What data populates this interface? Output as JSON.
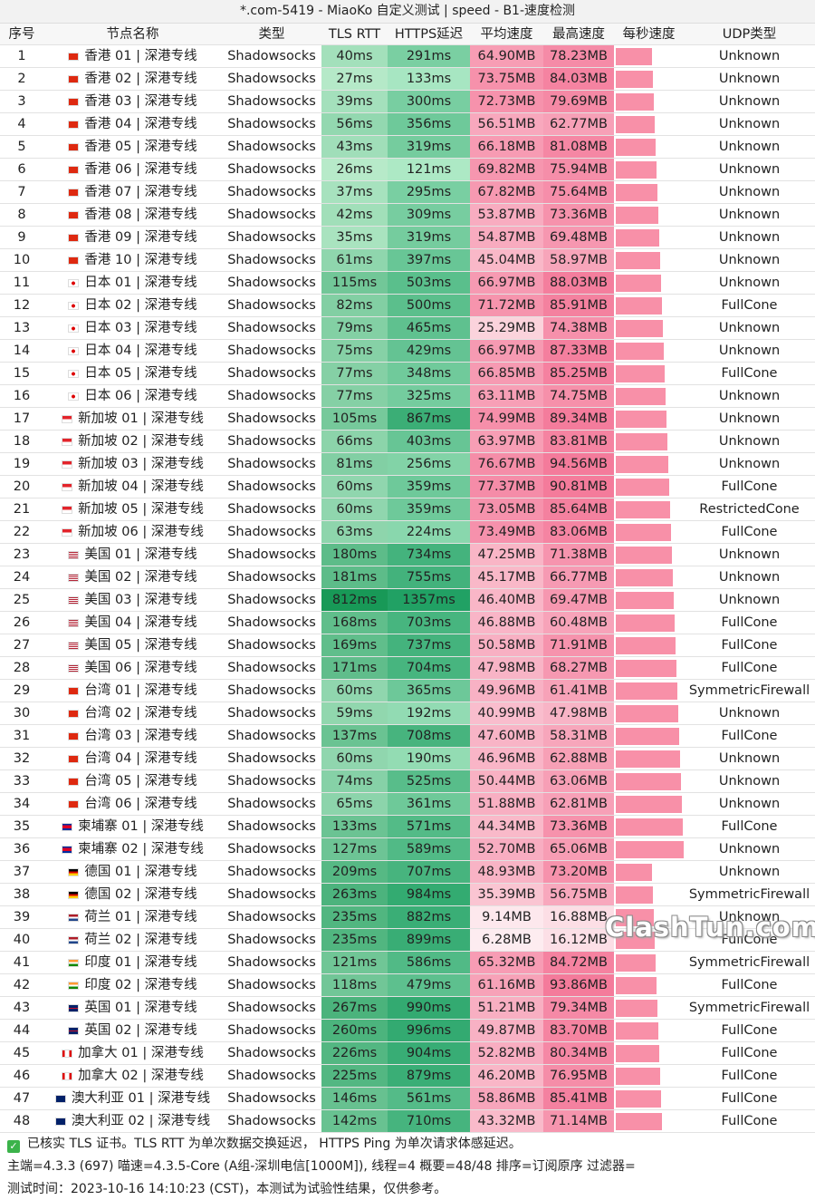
{
  "title": "*.com-5419 - MiaoKo 自定义测试 | speed - B1-速度检测",
  "table": {
    "header": [
      "序号",
      "节点名称",
      "类型",
      "TLS RTT",
      "HTTPS延迟",
      "平均速度",
      "最高速度",
      "每秒速度",
      "UDP类型"
    ],
    "rows": [
      [
        "1",
        "香港 01 | 深港专线",
        "Shadowsocks",
        "40ms",
        "291ms",
        "64.90MB",
        "78.23MB",
        "Unknown"
      ],
      [
        "2",
        "香港 02 | 深港专线",
        "Shadowsocks",
        "27ms",
        "133ms",
        "73.75MB",
        "84.03MB",
        "Unknown"
      ],
      [
        "3",
        "香港 03 | 深港专线",
        "Shadowsocks",
        "39ms",
        "300ms",
        "72.73MB",
        "79.69MB",
        "Unknown"
      ],
      [
        "4",
        "香港 04 | 深港专线",
        "Shadowsocks",
        "56ms",
        "356ms",
        "56.51MB",
        "62.77MB",
        "Unknown"
      ],
      [
        "5",
        "香港 05 | 深港专线",
        "Shadowsocks",
        "43ms",
        "319ms",
        "66.18MB",
        "81.08MB",
        "Unknown"
      ],
      [
        "6",
        "香港 06 | 深港专线",
        "Shadowsocks",
        "26ms",
        "121ms",
        "69.82MB",
        "75.94MB",
        "Unknown"
      ],
      [
        "7",
        "香港 07 | 深港专线",
        "Shadowsocks",
        "37ms",
        "295ms",
        "67.82MB",
        "75.64MB",
        "Unknown"
      ],
      [
        "8",
        "香港 08 | 深港专线",
        "Shadowsocks",
        "42ms",
        "309ms",
        "53.87MB",
        "73.36MB",
        "Unknown"
      ],
      [
        "9",
        "香港 09 | 深港专线",
        "Shadowsocks",
        "35ms",
        "319ms",
        "54.87MB",
        "69.48MB",
        "Unknown"
      ],
      [
        "10",
        "香港 10 | 深港专线",
        "Shadowsocks",
        "61ms",
        "397ms",
        "45.04MB",
        "58.97MB",
        "Unknown"
      ],
      [
        "11",
        "日本 01 | 深港专线",
        "Shadowsocks",
        "115ms",
        "503ms",
        "66.97MB",
        "88.03MB",
        "Unknown"
      ],
      [
        "12",
        "日本 02 | 深港专线",
        "Shadowsocks",
        "82ms",
        "500ms",
        "71.72MB",
        "85.91MB",
        "FullCone"
      ],
      [
        "13",
        "日本 03 | 深港专线",
        "Shadowsocks",
        "79ms",
        "465ms",
        "25.29MB",
        "74.38MB",
        "Unknown"
      ],
      [
        "14",
        "日本 04 | 深港专线",
        "Shadowsocks",
        "75ms",
        "429ms",
        "66.97MB",
        "87.33MB",
        "Unknown"
      ],
      [
        "15",
        "日本 05 | 深港专线",
        "Shadowsocks",
        "77ms",
        "348ms",
        "66.85MB",
        "85.25MB",
        "FullCone"
      ],
      [
        "16",
        "日本 06 | 深港专线",
        "Shadowsocks",
        "77ms",
        "325ms",
        "63.11MB",
        "74.75MB",
        "Unknown"
      ],
      [
        "17",
        "新加坡 01 | 深港专线",
        "Shadowsocks",
        "105ms",
        "867ms",
        "74.99MB",
        "89.34MB",
        "Unknown"
      ],
      [
        "18",
        "新加坡 02 | 深港专线",
        "Shadowsocks",
        "66ms",
        "403ms",
        "63.97MB",
        "83.81MB",
        "Unknown"
      ],
      [
        "19",
        "新加坡 03 | 深港专线",
        "Shadowsocks",
        "81ms",
        "256ms",
        "76.67MB",
        "94.56MB",
        "Unknown"
      ],
      [
        "20",
        "新加坡 04 | 深港专线",
        "Shadowsocks",
        "60ms",
        "359ms",
        "77.37MB",
        "90.81MB",
        "FullCone"
      ],
      [
        "21",
        "新加坡 05 | 深港专线",
        "Shadowsocks",
        "60ms",
        "359ms",
        "73.05MB",
        "85.64MB",
        "RestrictedCone"
      ],
      [
        "22",
        "新加坡 06 | 深港专线",
        "Shadowsocks",
        "63ms",
        "224ms",
        "73.49MB",
        "83.06MB",
        "FullCone"
      ],
      [
        "23",
        "美国 01 | 深港专线",
        "Shadowsocks",
        "180ms",
        "734ms",
        "47.25MB",
        "71.38MB",
        "Unknown"
      ],
      [
        "24",
        "美国 02 | 深港专线",
        "Shadowsocks",
        "181ms",
        "755ms",
        "45.17MB",
        "66.77MB",
        "Unknown"
      ],
      [
        "25",
        "美国 03 | 深港专线",
        "Shadowsocks",
        "812ms",
        "1357ms",
        "46.40MB",
        "69.47MB",
        "Unknown"
      ],
      [
        "26",
        "美国 04 | 深港专线",
        "Shadowsocks",
        "168ms",
        "703ms",
        "46.88MB",
        "60.48MB",
        "FullCone"
      ],
      [
        "27",
        "美国 05 | 深港专线",
        "Shadowsocks",
        "169ms",
        "737ms",
        "50.58MB",
        "71.91MB",
        "FullCone"
      ],
      [
        "28",
        "美国 06 | 深港专线",
        "Shadowsocks",
        "171ms",
        "704ms",
        "47.98MB",
        "68.27MB",
        "FullCone"
      ],
      [
        "29",
        "台湾 01 | 深港专线",
        "Shadowsocks",
        "60ms",
        "365ms",
        "49.96MB",
        "61.41MB",
        "SymmetricFirewall"
      ],
      [
        "30",
        "台湾 02 | 深港专线",
        "Shadowsocks",
        "59ms",
        "192ms",
        "40.99MB",
        "47.98MB",
        "Unknown"
      ],
      [
        "31",
        "台湾 03 | 深港专线",
        "Shadowsocks",
        "137ms",
        "708ms",
        "47.60MB",
        "58.31MB",
        "FullCone"
      ],
      [
        "32",
        "台湾 04 | 深港专线",
        "Shadowsocks",
        "60ms",
        "190ms",
        "46.96MB",
        "62.88MB",
        "Unknown"
      ],
      [
        "33",
        "台湾 05 | 深港专线",
        "Shadowsocks",
        "74ms",
        "525ms",
        "50.44MB",
        "63.06MB",
        "Unknown"
      ],
      [
        "34",
        "台湾 06 | 深港专线",
        "Shadowsocks",
        "65ms",
        "361ms",
        "51.88MB",
        "62.81MB",
        "Unknown"
      ],
      [
        "35",
        "柬埔寨 01 | 深港专线",
        "Shadowsocks",
        "133ms",
        "571ms",
        "44.34MB",
        "73.36MB",
        "FullCone"
      ],
      [
        "36",
        "柬埔寨 02 | 深港专线",
        "Shadowsocks",
        "127ms",
        "589ms",
        "52.70MB",
        "65.06MB",
        "Unknown"
      ],
      [
        "37",
        "德国 01 | 深港专线",
        "Shadowsocks",
        "209ms",
        "707ms",
        "48.93MB",
        "73.20MB",
        "Unknown"
      ],
      [
        "38",
        "德国 02 | 深港专线",
        "Shadowsocks",
        "263ms",
        "984ms",
        "35.39MB",
        "56.75MB",
        "SymmetricFirewall"
      ],
      [
        "39",
        "荷兰 01 | 深港专线",
        "Shadowsocks",
        "235ms",
        "882ms",
        "9.14MB",
        "16.88MB",
        "Unknown"
      ],
      [
        "40",
        "荷兰 02 | 深港专线",
        "Shadowsocks",
        "235ms",
        "899ms",
        "6.28MB",
        "16.12MB",
        "FullCone"
      ],
      [
        "41",
        "印度 01 | 深港专线",
        "Shadowsocks",
        "121ms",
        "586ms",
        "65.32MB",
        "84.72MB",
        "SymmetricFirewall"
      ],
      [
        "42",
        "印度 02 | 深港专线",
        "Shadowsocks",
        "118ms",
        "479ms",
        "61.16MB",
        "93.86MB",
        "FullCone"
      ],
      [
        "43",
        "英国 01 | 深港专线",
        "Shadowsocks",
        "267ms",
        "990ms",
        "51.21MB",
        "79.34MB",
        "SymmetricFirewall"
      ],
      [
        "44",
        "英国 02 | 深港专线",
        "Shadowsocks",
        "260ms",
        "996ms",
        "49.87MB",
        "83.70MB",
        "FullCone"
      ],
      [
        "45",
        "加拿大 01 | 深港专线",
        "Shadowsocks",
        "226ms",
        "904ms",
        "52.82MB",
        "80.34MB",
        "FullCone"
      ],
      [
        "46",
        "加拿大 02 | 深港专线",
        "Shadowsocks",
        "225ms",
        "879ms",
        "46.20MB",
        "76.95MB",
        "FullCone"
      ],
      [
        "47",
        "澳大利亚 01 | 深港专线",
        "Shadowsocks",
        "146ms",
        "561ms",
        "58.86MB",
        "85.41MB",
        "FullCone"
      ],
      [
        "48",
        "澳大利亚 02 | 深港专线",
        "Shadowsocks",
        "142ms",
        "710ms",
        "43.32MB",
        "71.14MB",
        "FullCone"
      ]
    ]
  },
  "footer": [
    "已核实 TLS 证书。TLS RTT 为单次数据交换延迟， HTTPS Ping 为单次请求体感延迟。",
    "主端=4.3.3 (697) 喵速=4.3.5-Core (A组-深圳电信[1000M]), 线程=4 概要=48/48 排序=订阅原序 过滤器=",
    "测试时间：2023-10-16 14:10:23 (CST)，本测试为试验性结果，仅供参考。"
  ],
  "watermark": "ClashTun.com"
}
